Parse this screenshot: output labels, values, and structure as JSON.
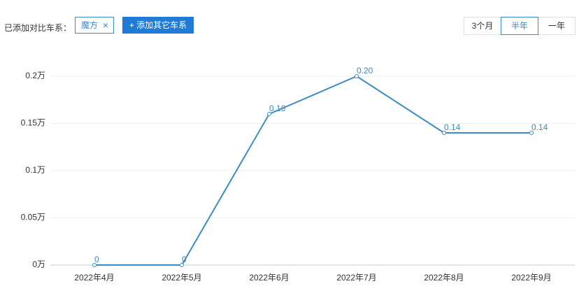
{
  "ui": {
    "compare_label": "已添加对比车系：",
    "tag": "魔方",
    "tag_close": "×",
    "add_button": "+ 添加其它车系",
    "periods": [
      {
        "label": "3个月",
        "selected": false
      },
      {
        "label": "半年",
        "selected": true
      },
      {
        "label": "一年",
        "selected": false
      }
    ]
  },
  "chart_data": {
    "type": "line",
    "categories": [
      "2022年4月",
      "2022年5月",
      "2022年6月",
      "2022年7月",
      "2022年8月",
      "2022年9月"
    ],
    "values": [
      0,
      0,
      0.16,
      0.2,
      0.14,
      0.14
    ],
    "value_labels": [
      "0",
      "0",
      "0.16",
      "0.20",
      "0.14",
      "0.14"
    ],
    "color": "#3b8bc6",
    "ylim": [
      0,
      0.2
    ],
    "yticks": [
      {
        "value": 0,
        "label": "0万"
      },
      {
        "value": 0.05,
        "label": "0.05万"
      },
      {
        "value": 0.1,
        "label": "0.1万"
      },
      {
        "value": 0.15,
        "label": "0.15万"
      },
      {
        "value": 0.2,
        "label": "0.2万"
      }
    ],
    "grid": true
  }
}
